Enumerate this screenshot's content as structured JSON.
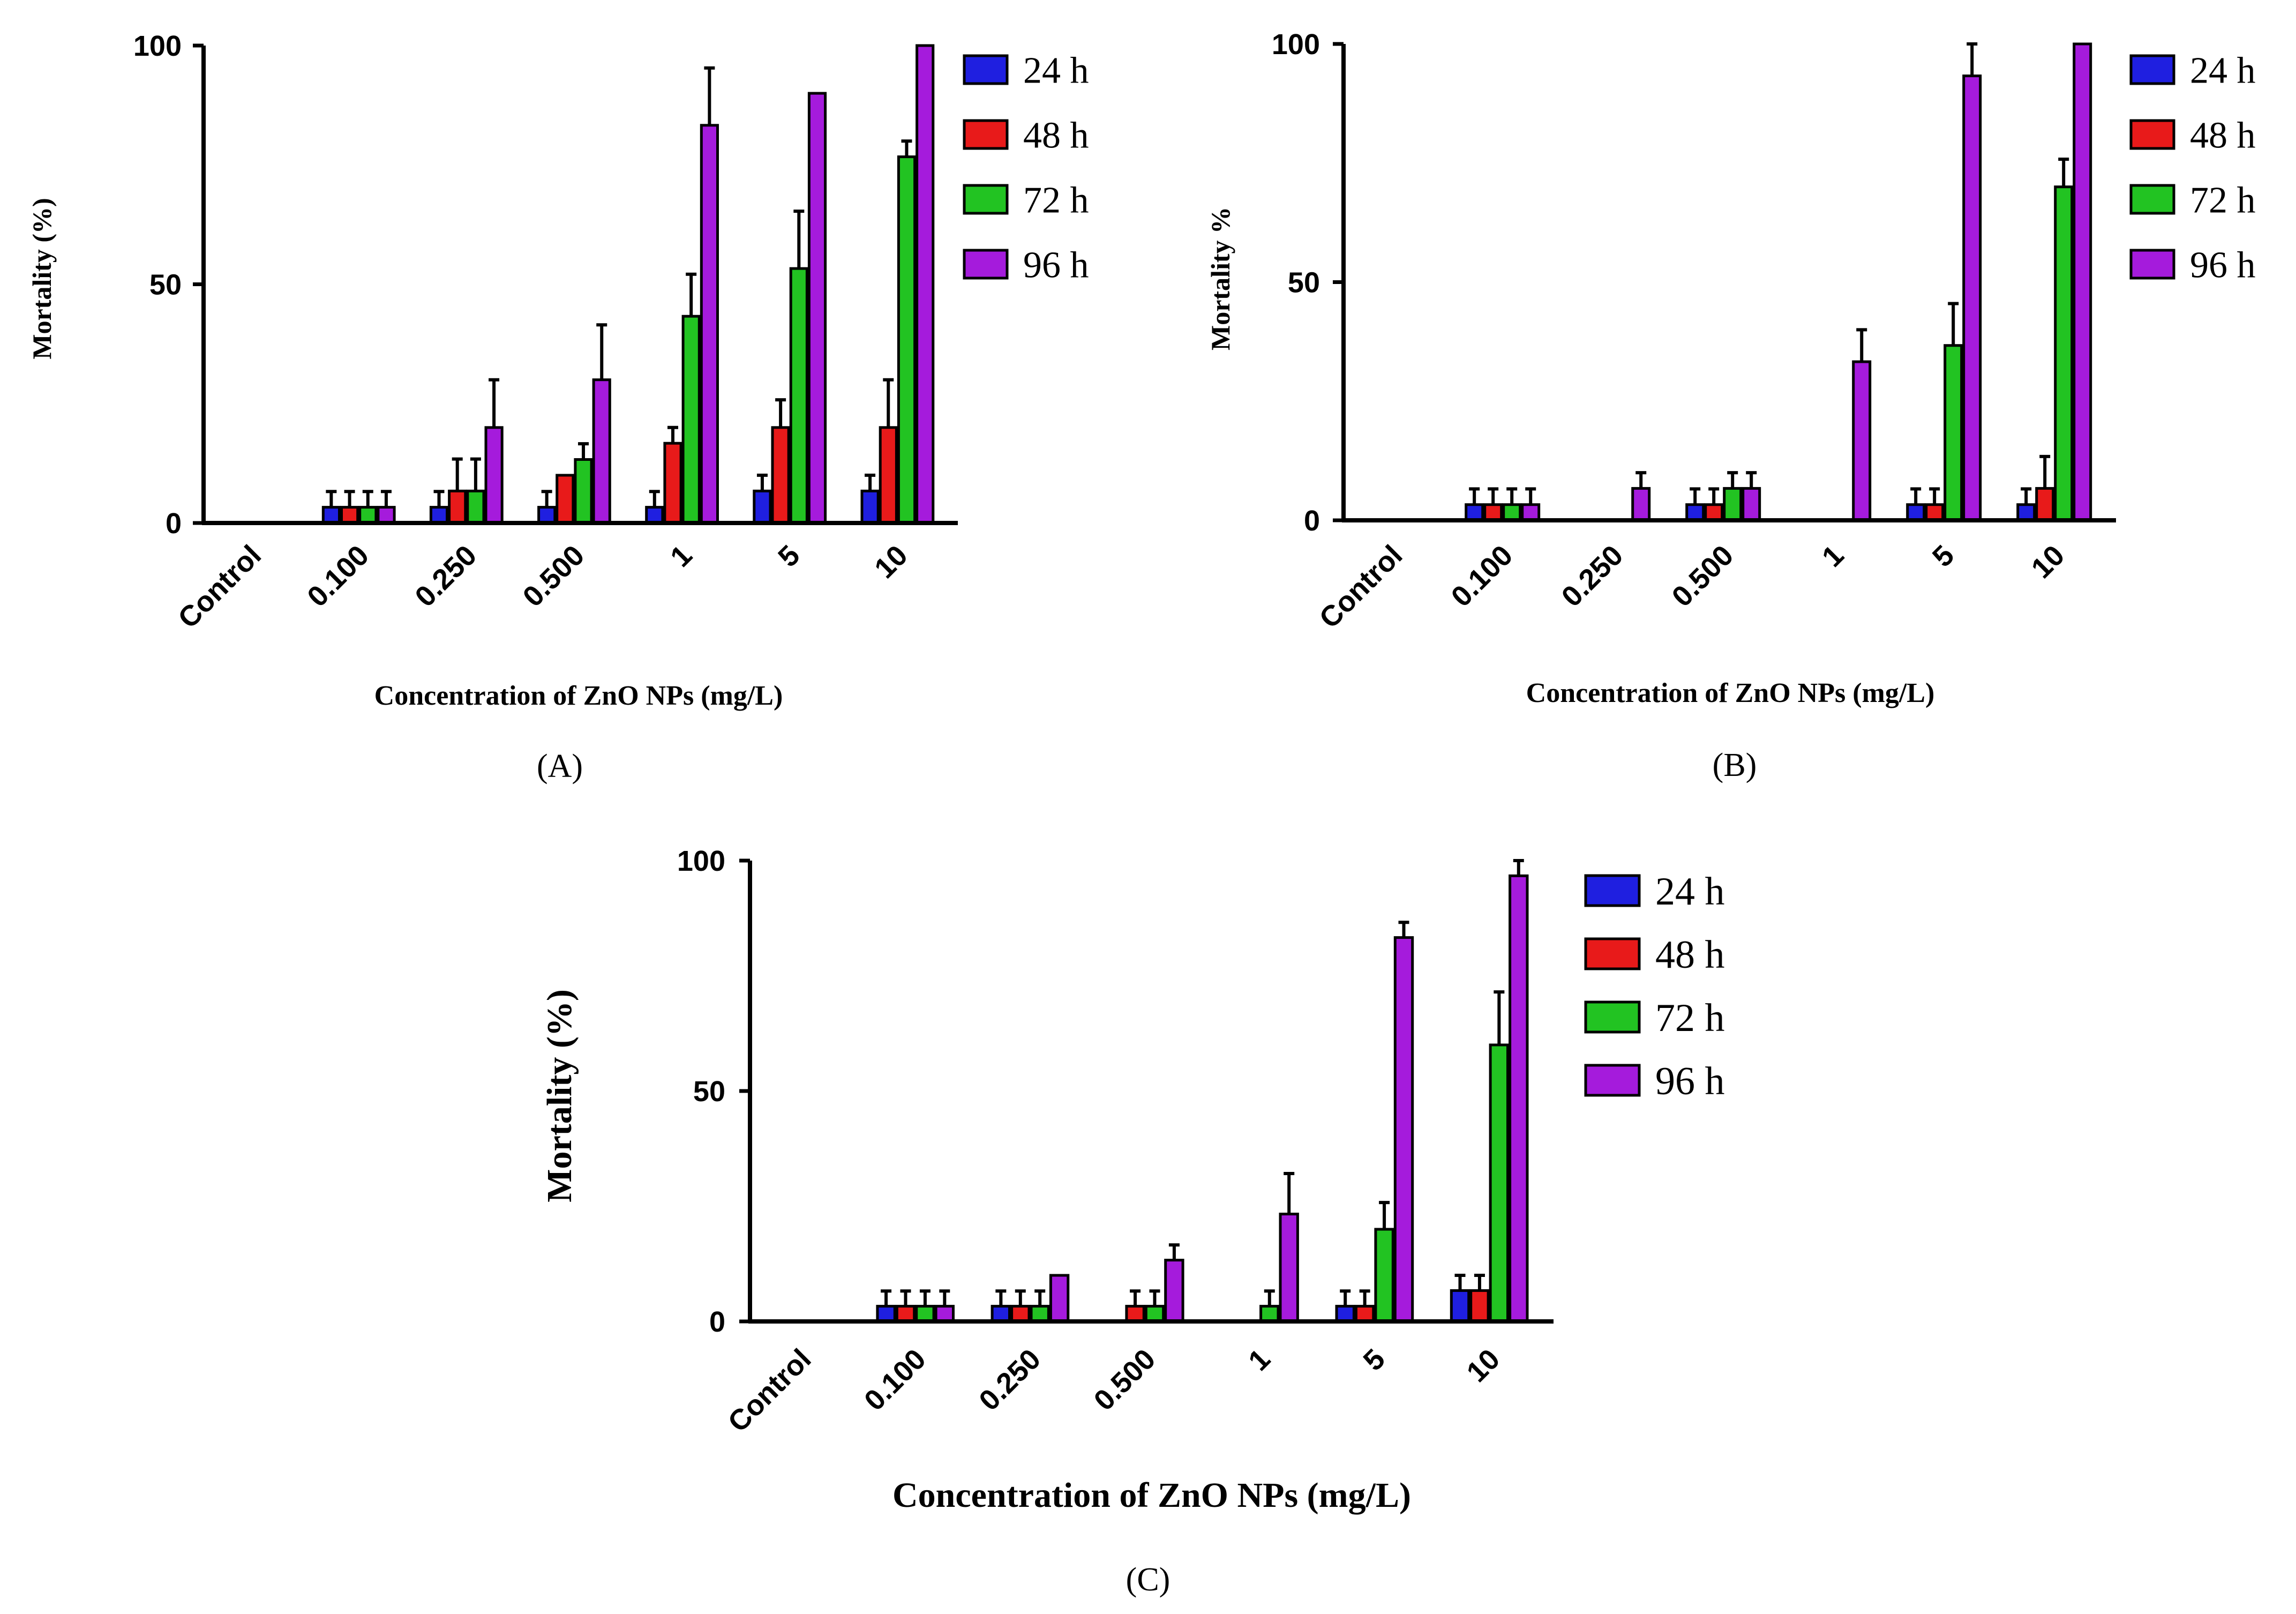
{
  "figure_colors": {
    "24 h": "#1f1fe0",
    "48 h": "#e81a1a",
    "72 h": "#22c322",
    "96 h": "#a51bdc"
  },
  "chart_data": [
    {
      "type": "bar",
      "panel_label": "(A)",
      "categories": [
        "Control",
        "0.100",
        "0.250",
        "0.500",
        "1",
        "5",
        "10"
      ],
      "xlabel": "Concentration of ZnO NPs (mg/L)",
      "ylabel": "Mortality (%)",
      "ylim": [
        0,
        100
      ],
      "yticks": [
        "0",
        "50",
        "100"
      ],
      "legend_position": "top-right",
      "series": [
        {
          "name": "24 h",
          "values": [
            0,
            3.3,
            3.3,
            3.3,
            3.3,
            6.7,
            6.7
          ],
          "errors": [
            0,
            3.3,
            3.3,
            3.3,
            3.3,
            3.3,
            3.3
          ]
        },
        {
          "name": "48 h",
          "values": [
            0,
            3.3,
            6.7,
            10,
            16.7,
            20,
            20
          ],
          "errors": [
            0,
            3.3,
            6.7,
            0,
            3.3,
            5.8,
            10
          ]
        },
        {
          "name": "72 h",
          "values": [
            0,
            3.3,
            6.7,
            13.3,
            43.3,
            53.3,
            76.7
          ],
          "errors": [
            0,
            3.3,
            6.7,
            3.3,
            8.8,
            12,
            3.3
          ]
        },
        {
          "name": "96 h",
          "values": [
            0,
            3.3,
            20,
            30,
            83.3,
            90,
            100
          ],
          "errors": [
            0,
            3.3,
            10,
            11.5,
            12,
            0,
            0
          ]
        }
      ]
    },
    {
      "type": "bar",
      "panel_label": "(B)",
      "categories": [
        "Control",
        "0.100",
        "0.250",
        "0.500",
        "1",
        "5",
        "10"
      ],
      "xlabel": "Concentration of ZnO NPs (mg/L)",
      "ylabel": "Mortality %",
      "ylim": [
        0,
        100
      ],
      "yticks": [
        "0",
        "50",
        "100"
      ],
      "legend_position": "top-right",
      "series": [
        {
          "name": "24 h",
          "values": [
            0,
            3.3,
            0,
            3.3,
            0,
            3.3,
            3.3
          ],
          "errors": [
            0,
            3.3,
            0,
            3.3,
            0,
            3.3,
            3.3
          ]
        },
        {
          "name": "48 h",
          "values": [
            0,
            3.3,
            0,
            3.3,
            0,
            3.3,
            6.7
          ],
          "errors": [
            0,
            3.3,
            0,
            3.3,
            0,
            3.3,
            6.7
          ]
        },
        {
          "name": "72 h",
          "values": [
            0,
            3.3,
            0,
            6.7,
            0,
            36.7,
            70
          ],
          "errors": [
            0,
            3.3,
            0,
            3.3,
            0,
            8.8,
            5.8
          ]
        },
        {
          "name": "96 h",
          "values": [
            0,
            3.3,
            6.7,
            6.7,
            33.3,
            93.3,
            100
          ],
          "errors": [
            0,
            3.3,
            3.3,
            3.3,
            6.7,
            6.7,
            0
          ]
        }
      ]
    },
    {
      "type": "bar",
      "panel_label": "(C)",
      "categories": [
        "Control",
        "0.100",
        "0.250",
        "0.500",
        "1",
        "5",
        "10"
      ],
      "xlabel": "Concentration of ZnO NPs (mg/L)",
      "ylabel": "Mortality (%)",
      "ylim": [
        0,
        100
      ],
      "yticks": [
        "0",
        "50",
        "100"
      ],
      "legend_position": "top-right",
      "series": [
        {
          "name": "24 h",
          "values": [
            0,
            3.3,
            3.3,
            0,
            0,
            3.3,
            6.7
          ],
          "errors": [
            0,
            3.3,
            3.3,
            0,
            0,
            3.3,
            3.3
          ]
        },
        {
          "name": "48 h",
          "values": [
            0,
            3.3,
            3.3,
            3.3,
            0,
            3.3,
            6.7
          ],
          "errors": [
            0,
            3.3,
            3.3,
            3.3,
            0,
            3.3,
            3.3
          ]
        },
        {
          "name": "72 h",
          "values": [
            0,
            3.3,
            3.3,
            3.3,
            3.3,
            20,
            60
          ],
          "errors": [
            0,
            3.3,
            3.3,
            3.3,
            3.3,
            5.8,
            11.5
          ]
        },
        {
          "name": "96 h",
          "values": [
            0,
            3.3,
            10,
            13.3,
            23.3,
            83.3,
            96.7
          ],
          "errors": [
            0,
            3.3,
            0,
            3.3,
            8.8,
            3.3,
            3.3
          ]
        }
      ]
    }
  ]
}
